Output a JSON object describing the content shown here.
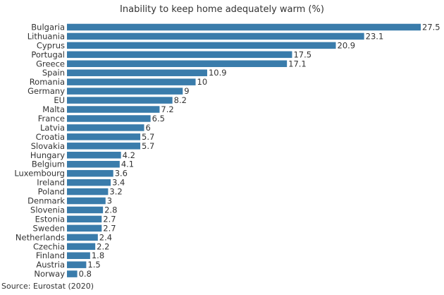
{
  "chart_data": {
    "type": "bar",
    "orientation": "horizontal",
    "title": "Inability to keep home adequately warm (%)",
    "categories": [
      "Bulgaria",
      "Lithuania",
      "Cyprus",
      "Portugal",
      "Greece",
      "Spain",
      "Romania",
      "Germany",
      "EU",
      "Malta",
      "France",
      "Latvia",
      "Croatia",
      "Slovakia",
      "Hungary",
      "Belgium",
      "Luxembourg",
      "Ireland",
      "Poland",
      "Denmark",
      "Slovenia",
      "Estonia",
      "Sweden",
      "Netherlands",
      "Czechia",
      "Finland",
      "Austria",
      "Norway"
    ],
    "values": [
      27.5,
      23.1,
      20.9,
      17.5,
      17.1,
      10.9,
      10,
      9,
      8.2,
      7.2,
      6.5,
      6,
      5.7,
      5.7,
      4.2,
      4.1,
      3.6,
      3.4,
      3.2,
      3,
      2.8,
      2.7,
      2.7,
      2.4,
      2.2,
      1.8,
      1.5,
      0.8
    ],
    "value_labels": [
      "27.5",
      "23.1",
      "20.9",
      "17.5",
      "17.1",
      "10.9",
      "10",
      "9",
      "8.2",
      "7.2",
      "6.5",
      "6",
      "5.7",
      "5.7",
      "4.2",
      "4.1",
      "3.6",
      "3.4",
      "3.2",
      "3",
      "2.8",
      "2.7",
      "2.7",
      "2.4",
      "2.2",
      "1.8",
      "1.5",
      "0.8"
    ],
    "xlim": [
      0,
      27.5
    ],
    "bar_color": "#3a7cab",
    "grid": false,
    "legend": "none"
  },
  "source": "Source: Eurostat (2020)"
}
